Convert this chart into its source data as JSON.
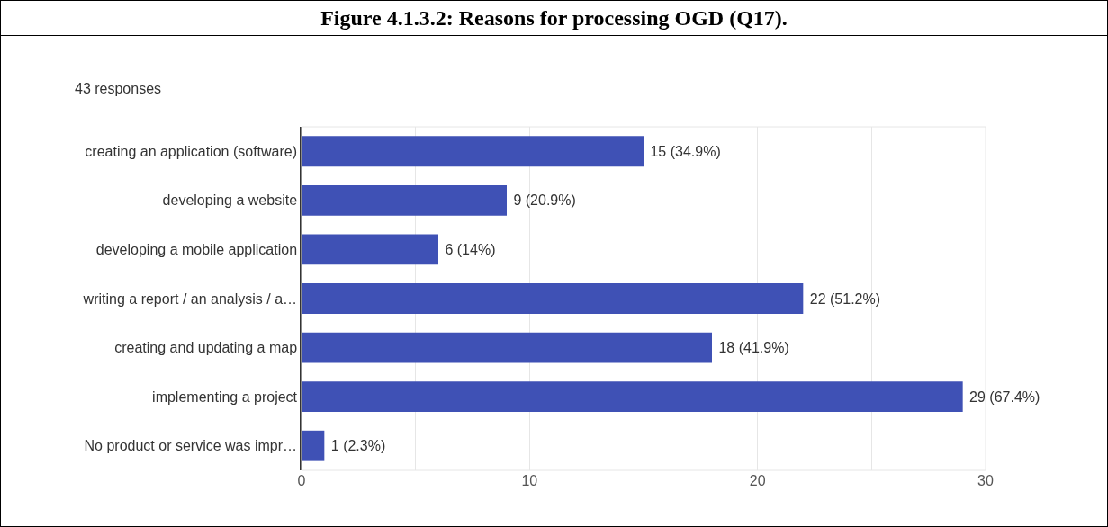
{
  "chart_data": {
    "type": "bar",
    "orientation": "horizontal",
    "title": "Figure 4.1.3.2: Reasons for processing OGD (Q17).",
    "subtitle": "43 responses",
    "categories": [
      "creating an application (software)",
      "developing a website",
      "developing a mobile application",
      "writing a report / an analysis / a…",
      "creating and updating a map",
      "implementing a project",
      "No product or service was impr…"
    ],
    "values": [
      15,
      9,
      6,
      22,
      18,
      29,
      1
    ],
    "value_labels": [
      "15 (34.9%)",
      "9 (20.9%)",
      "6 (14%)",
      "22 (51.2%)",
      "18 (41.9%)",
      "29 (67.4%)",
      "1 (2.3%)"
    ],
    "color": "#3f51b5",
    "xlim": [
      0,
      30
    ],
    "xticks": [
      0,
      {
        "value": 5,
        "label": null
      },
      10,
      {
        "value": 15,
        "label": null
      },
      20,
      {
        "value": 25,
        "label": null
      },
      30
    ],
    "grid": "x"
  }
}
